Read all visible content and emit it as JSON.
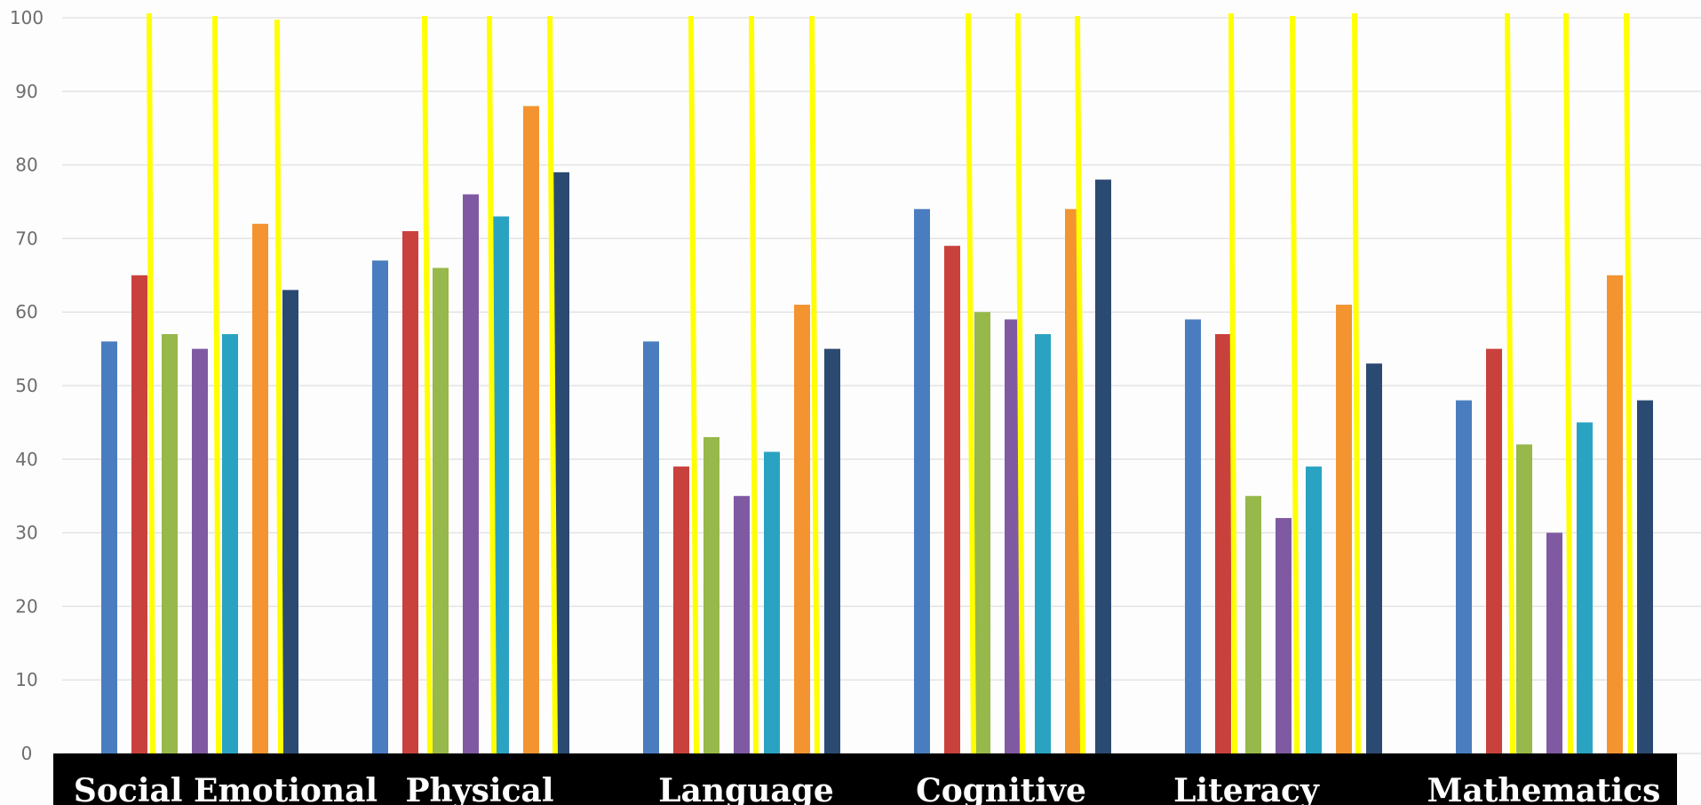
{
  "chart_data": {
    "type": "bar",
    "categories": [
      "Social Emotional",
      "Physical",
      "Language",
      "Cognitive",
      "Literacy",
      "Mathematics"
    ],
    "series": [
      {
        "values": [
          56,
          67,
          56,
          74,
          59,
          48
        ],
        "color": "#4a7dbf"
      },
      {
        "values": [
          65,
          71,
          39,
          69,
          57,
          55
        ],
        "color": "#c9413c"
      },
      {
        "values": [
          57,
          66,
          43,
          60,
          35,
          42
        ],
        "color": "#97b84a"
      },
      {
        "values": [
          55,
          76,
          35,
          59,
          32,
          30
        ],
        "color": "#7f5aa2"
      },
      {
        "values": [
          57,
          73,
          41,
          57,
          39,
          45
        ],
        "color": "#2aa3c2"
      },
      {
        "values": [
          72,
          88,
          61,
          74,
          61,
          65
        ],
        "color": "#f39431"
      },
      {
        "values": [
          63,
          79,
          55,
          78,
          53,
          48
        ],
        "color": "#2b4a72"
      }
    ],
    "yticks": [
      "0",
      "10",
      "20",
      "30",
      "40",
      "50",
      "60",
      "70",
      "80",
      "90",
      "100"
    ],
    "ylim": [
      0,
      100
    ],
    "grid": true,
    "legend": "none",
    "xlabel": "",
    "ylabel": "",
    "title": "",
    "label_band_color": "#000000",
    "marker_line_color": "#ffff00"
  }
}
